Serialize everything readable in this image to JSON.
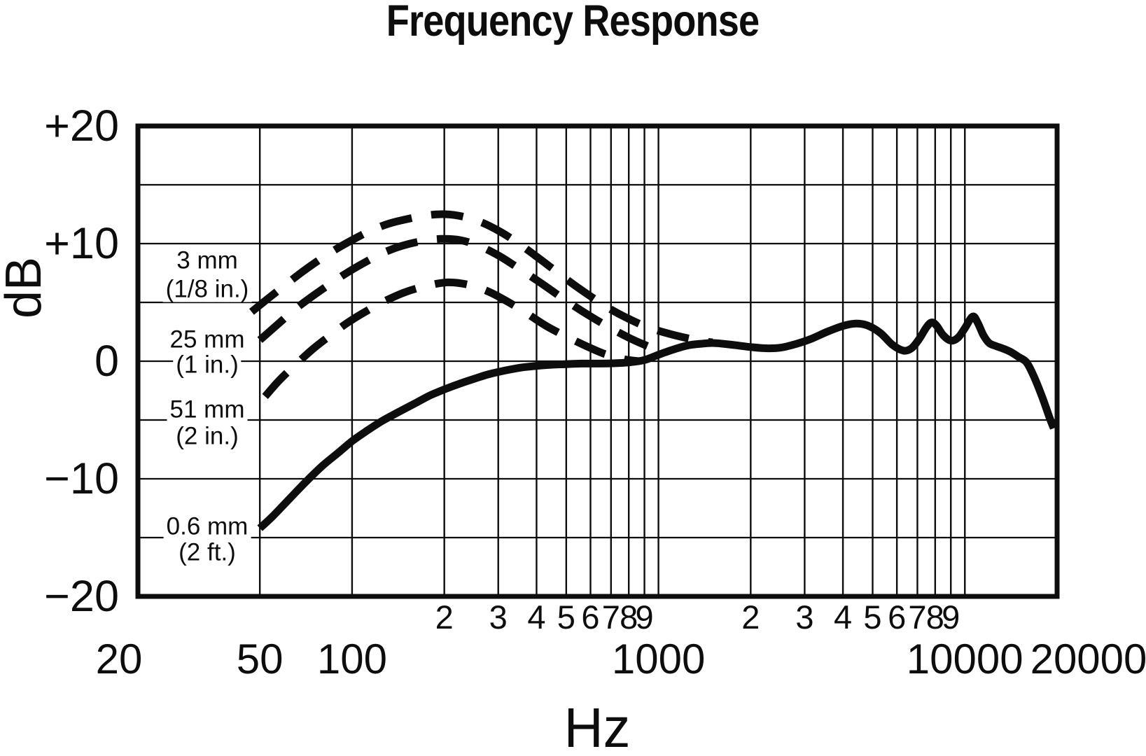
{
  "title": "Frequency Response",
  "y_axis": {
    "label": "dB",
    "ticks": [
      {
        "db": 20,
        "label": "+20"
      },
      {
        "db": 10,
        "label": "+10"
      },
      {
        "db": 0,
        "label": "0"
      },
      {
        "db": -10,
        "label": "−10"
      },
      {
        "db": -20,
        "label": "−20"
      }
    ],
    "gridlines_db": [
      15,
      10,
      5,
      0,
      -5,
      -10,
      -15
    ],
    "min": -20,
    "max": 20
  },
  "x_axis": {
    "label": "Hz",
    "scale": "log",
    "min": 20,
    "max": 20000,
    "major_ticks": [
      {
        "hz": 20,
        "label": "20"
      },
      {
        "hz": 50,
        "label": "50"
      },
      {
        "hz": 100,
        "label": "100"
      },
      {
        "hz": 1000,
        "label": "1000"
      },
      {
        "hz": 10000,
        "label": "10000"
      },
      {
        "hz": 20000,
        "label": "20000"
      }
    ],
    "minor_ticks": [
      {
        "hz": 200,
        "label": "2"
      },
      {
        "hz": 300,
        "label": "3"
      },
      {
        "hz": 400,
        "label": "4"
      },
      {
        "hz": 500,
        "label": "5"
      },
      {
        "hz": 600,
        "label": "6"
      },
      {
        "hz": 700,
        "label": "7"
      },
      {
        "hz": 800,
        "label": "8"
      },
      {
        "hz": 900,
        "label": "9"
      },
      {
        "hz": 2000,
        "label": "2"
      },
      {
        "hz": 3000,
        "label": "3"
      },
      {
        "hz": 4000,
        "label": "4"
      },
      {
        "hz": 5000,
        "label": "5"
      },
      {
        "hz": 6000,
        "label": "6"
      },
      {
        "hz": 7000,
        "label": "7"
      },
      {
        "hz": 8000,
        "label": "8"
      },
      {
        "hz": 9000,
        "label": "9"
      }
    ],
    "gridlines_hz": [
      50,
      100,
      200,
      300,
      400,
      500,
      600,
      700,
      800,
      900,
      1000,
      2000,
      3000,
      4000,
      5000,
      6000,
      7000,
      8000,
      9000,
      10000
    ]
  },
  "curve_labels": [
    {
      "line1": "3 mm",
      "line2": "(1/8 in.)"
    },
    {
      "line1": "25 mm",
      "line2": "(1 in.)"
    },
    {
      "line1": "51 mm",
      "line2": "(2 in.)"
    },
    {
      "line1": "0.6 mm",
      "line2": "(2 ft.)"
    }
  ],
  "colors": {
    "ink": "#0d0d0d",
    "background": "#ffffff"
  },
  "chart_data": {
    "type": "line",
    "title": "Frequency Response",
    "xlabel": "Hz",
    "ylabel": "dB",
    "x_scale": "log",
    "xlim": [
      20,
      20000
    ],
    "ylim": [
      -20,
      20
    ],
    "grid": true,
    "legend_position": "inline-left",
    "series": [
      {
        "name": "3 mm (1/8 in.)",
        "style": "dashed",
        "points": [
          [
            47,
            4.2
          ],
          [
            53,
            5.3
          ],
          [
            60,
            6.4
          ],
          [
            68,
            7.5
          ],
          [
            77,
            8.5
          ],
          [
            87,
            9.4
          ],
          [
            100,
            10.3
          ],
          [
            115,
            11.1
          ],
          [
            132,
            11.7
          ],
          [
            152,
            12.1
          ],
          [
            175,
            12.4
          ],
          [
            200,
            12.5
          ],
          [
            230,
            12.3
          ],
          [
            265,
            11.8
          ],
          [
            305,
            11.0
          ],
          [
            350,
            10.0
          ],
          [
            400,
            8.9
          ],
          [
            460,
            7.7
          ],
          [
            530,
            6.5
          ],
          [
            610,
            5.4
          ],
          [
            700,
            4.4
          ],
          [
            800,
            3.6
          ],
          [
            920,
            2.9
          ],
          [
            1060,
            2.4
          ],
          [
            1220,
            2.0
          ],
          [
            1400,
            1.7
          ],
          [
            1500,
            1.6
          ]
        ]
      },
      {
        "name": "25 mm (1 in.)",
        "style": "dashed",
        "points": [
          [
            50,
            1.8
          ],
          [
            57,
            3.1
          ],
          [
            65,
            4.4
          ],
          [
            74,
            5.5
          ],
          [
            84,
            6.5
          ],
          [
            96,
            7.5
          ],
          [
            110,
            8.4
          ],
          [
            126,
            9.2
          ],
          [
            145,
            9.8
          ],
          [
            168,
            10.2
          ],
          [
            195,
            10.4
          ],
          [
            225,
            10.3
          ],
          [
            260,
            9.8
          ],
          [
            300,
            9.0
          ],
          [
            345,
            8.0
          ],
          [
            400,
            6.9
          ],
          [
            460,
            5.8
          ],
          [
            530,
            4.7
          ],
          [
            610,
            3.7
          ],
          [
            700,
            2.8
          ],
          [
            800,
            2.0
          ],
          [
            900,
            1.4
          ],
          [
            1000,
            0.95
          ],
          [
            1080,
            0.8
          ]
        ]
      },
      {
        "name": "51 mm (2 in.)",
        "style": "dashed",
        "points": [
          [
            52,
            -3.0
          ],
          [
            58,
            -1.6
          ],
          [
            66,
            -0.2
          ],
          [
            75,
            1.1
          ],
          [
            85,
            2.2
          ],
          [
            97,
            3.3
          ],
          [
            112,
            4.3
          ],
          [
            130,
            5.2
          ],
          [
            150,
            5.9
          ],
          [
            175,
            6.4
          ],
          [
            205,
            6.7
          ],
          [
            240,
            6.5
          ],
          [
            280,
            5.9
          ],
          [
            325,
            5.0
          ],
          [
            375,
            4.0
          ],
          [
            430,
            3.0
          ],
          [
            500,
            2.1
          ],
          [
            580,
            1.3
          ],
          [
            670,
            0.6
          ],
          [
            780,
            0.15
          ],
          [
            870,
            0.0
          ]
        ]
      },
      {
        "name": "0.6 mm (2 ft.)",
        "style": "solid",
        "points": [
          [
            50,
            -14.2
          ],
          [
            55,
            -13.2
          ],
          [
            63,
            -11.6
          ],
          [
            71,
            -10.2
          ],
          [
            80,
            -8.9
          ],
          [
            90,
            -7.8
          ],
          [
            100,
            -6.8
          ],
          [
            112,
            -5.9
          ],
          [
            125,
            -5.1
          ],
          [
            140,
            -4.4
          ],
          [
            160,
            -3.6
          ],
          [
            180,
            -2.9
          ],
          [
            200,
            -2.4
          ],
          [
            225,
            -1.9
          ],
          [
            250,
            -1.5
          ],
          [
            280,
            -1.1
          ],
          [
            315,
            -0.8
          ],
          [
            355,
            -0.55
          ],
          [
            400,
            -0.4
          ],
          [
            450,
            -0.3
          ],
          [
            500,
            -0.25
          ],
          [
            560,
            -0.2
          ],
          [
            630,
            -0.2
          ],
          [
            710,
            -0.18
          ],
          [
            800,
            -0.1
          ],
          [
            900,
            0.1
          ],
          [
            1000,
            0.55
          ],
          [
            1120,
            1.0
          ],
          [
            1250,
            1.35
          ],
          [
            1400,
            1.5
          ],
          [
            1500,
            1.55
          ],
          [
            1600,
            1.5
          ],
          [
            1800,
            1.35
          ],
          [
            2000,
            1.2
          ],
          [
            2240,
            1.1
          ],
          [
            2500,
            1.15
          ],
          [
            2800,
            1.45
          ],
          [
            3150,
            1.9
          ],
          [
            3550,
            2.5
          ],
          [
            4000,
            3.0
          ],
          [
            4400,
            3.2
          ],
          [
            4800,
            3.05
          ],
          [
            5300,
            2.4
          ],
          [
            5800,
            1.4
          ],
          [
            6300,
            0.9
          ],
          [
            6700,
            1.1
          ],
          [
            7100,
            1.9
          ],
          [
            7500,
            2.9
          ],
          [
            7800,
            3.3
          ],
          [
            8100,
            3.0
          ],
          [
            8500,
            2.2
          ],
          [
            9000,
            1.75
          ],
          [
            9500,
            2.0
          ],
          [
            10000,
            2.8
          ],
          [
            10600,
            3.8
          ],
          [
            11000,
            3.3
          ],
          [
            11500,
            2.2
          ],
          [
            12000,
            1.55
          ],
          [
            12600,
            1.3
          ],
          [
            13400,
            1.05
          ],
          [
            14200,
            0.75
          ],
          [
            15000,
            0.35
          ],
          [
            15900,
            -0.1
          ],
          [
            16800,
            -1.3
          ],
          [
            17800,
            -2.9
          ],
          [
            18900,
            -4.8
          ],
          [
            19500,
            -5.7
          ]
        ]
      }
    ]
  }
}
